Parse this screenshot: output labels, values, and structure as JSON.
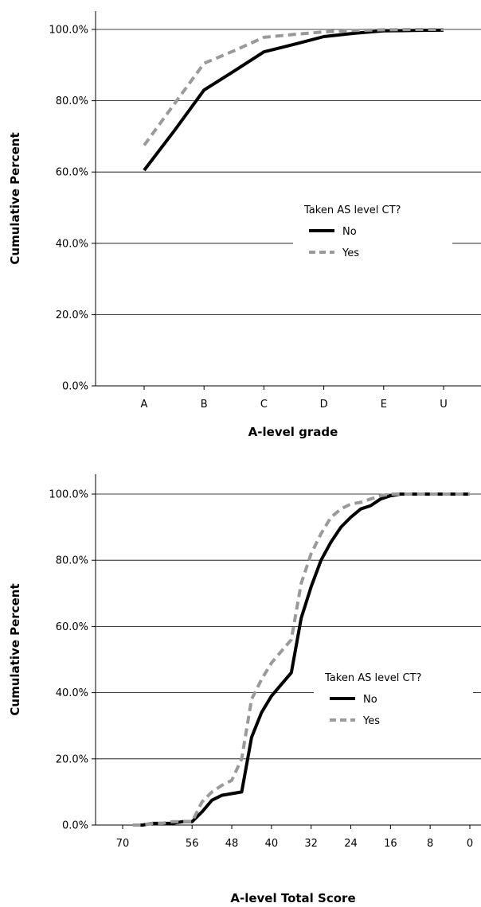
{
  "chart_data": [
    {
      "type": "line",
      "xlabel": "A-level grade",
      "ylabel": "Cumulative Percent",
      "categories": [
        "A",
        "B",
        "C",
        "D",
        "E",
        "U"
      ],
      "ylim": [
        0,
        100
      ],
      "y_ticks": [
        "0.0%",
        "20.0%",
        "40.0%",
        "60.0%",
        "80.0%",
        "100.0%"
      ],
      "grid": "horizontal",
      "legend": {
        "title": "Taken AS level CT?",
        "placement": "center-right"
      },
      "series": [
        {
          "name": "No",
          "style": "solid",
          "color": "#000000",
          "x": [
            0,
            0.5,
            1,
            1.5,
            2,
            2.5,
            3,
            3.5,
            4,
            4.5,
            5
          ],
          "values": [
            60.5,
            71.5,
            83,
            88.3,
            93.7,
            95.8,
            98,
            98.9,
            99.6,
            99.7,
            99.8
          ]
        },
        {
          "name": "Yes",
          "style": "dashed",
          "color": "#9a9a9a",
          "x": [
            0,
            0.5,
            1,
            1.5,
            2,
            2.5,
            3,
            3.5,
            4,
            4.5,
            5
          ],
          "values": [
            67.5,
            79,
            90.5,
            94,
            97.8,
            98.6,
            99.3,
            99.7,
            99.9,
            100,
            100
          ]
        }
      ]
    },
    {
      "type": "line",
      "xlabel": "A-level Total Score",
      "ylabel": "Cumulative Percent",
      "x_ticks": [
        "70",
        "56",
        "48",
        "40",
        "32",
        "24",
        "16",
        "8",
        "0"
      ],
      "y_ticks": [
        "0.0%",
        "20.0%",
        "40.0%",
        "60.0%",
        "80.0%",
        "100.0%"
      ],
      "ylim": [
        0,
        100
      ],
      "grid": "horizontal",
      "legend": {
        "title": "Taken AS level CT?",
        "placement": "center-right"
      },
      "series": [
        {
          "name": "No",
          "style": "solid",
          "color": "#000000",
          "x": [
            68,
            66,
            64,
            62,
            60,
            58,
            56,
            54,
            52,
            50,
            48,
            46,
            44,
            42,
            40,
            38,
            36,
            34,
            32,
            30,
            28,
            26,
            24,
            22,
            20,
            18,
            16,
            14,
            12,
            10,
            8,
            6,
            4,
            2,
            0
          ],
          "values": [
            0,
            0,
            0.5,
            0.5,
            0.5,
            1,
            1,
            4,
            7.5,
            9,
            9.5,
            10,
            26.5,
            34,
            39,
            42.5,
            46,
            62.5,
            72,
            80,
            85.5,
            90,
            93,
            95.5,
            96.5,
            98.5,
            99.5,
            100,
            100,
            100,
            100,
            100,
            100,
            100,
            100
          ]
        },
        {
          "name": "Yes",
          "style": "dashed",
          "color": "#9a9a9a",
          "x": [
            68,
            66,
            64,
            62,
            60,
            58,
            56,
            54,
            52,
            50,
            48,
            46,
            44,
            42,
            40,
            38,
            36,
            34,
            32,
            30,
            28,
            26,
            24,
            22,
            20,
            18,
            16,
            14,
            12,
            10,
            8,
            6,
            4,
            2,
            0
          ],
          "values": [
            0,
            0,
            0.5,
            0.5,
            1,
            1,
            1,
            7,
            10,
            12,
            13.5,
            20,
            38,
            44,
            49,
            52.5,
            56,
            73,
            82,
            88,
            93,
            95.5,
            97,
            97.5,
            98.5,
            99.5,
            100,
            100,
            100,
            100,
            100,
            100,
            100,
            100,
            100
          ]
        }
      ]
    }
  ]
}
